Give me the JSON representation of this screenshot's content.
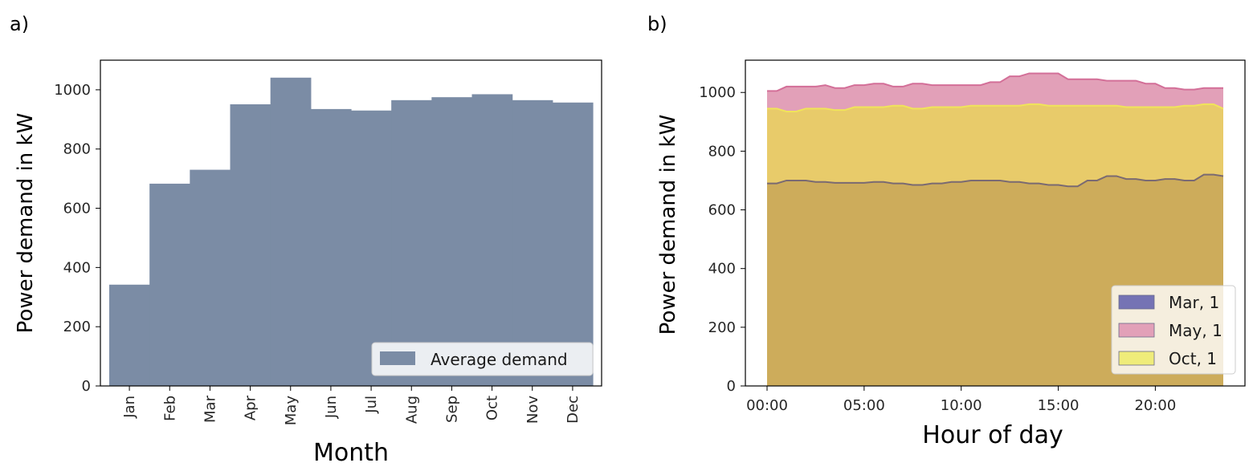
{
  "panel_labels": {
    "a": "a)",
    "b": "b)"
  },
  "chart_data": [
    {
      "type": "bar",
      "title": "",
      "xlabel": "Month",
      "ylabel": "Power demand in kW",
      "categories": [
        "Jan",
        "Feb",
        "Mar",
        "Apr",
        "May",
        "Jun",
        "Jul",
        "Aug",
        "Sep",
        "Oct",
        "Nov",
        "Dec"
      ],
      "series": [
        {
          "name": "Average demand",
          "color": "#7b8ca5",
          "values": [
            342,
            683,
            730,
            951,
            1041,
            935,
            930,
            965,
            975,
            985,
            965,
            957
          ]
        }
      ],
      "ylim": [
        0,
        1100
      ],
      "yticks": [
        0,
        200,
        400,
        600,
        800,
        1000
      ],
      "legend": {
        "position": "bottom-right",
        "labels": [
          "Average demand"
        ]
      },
      "grid": false
    },
    {
      "type": "area",
      "title": "",
      "xlabel": "Hour of day",
      "ylabel": "Power demand in kW",
      "x_hours": [
        0,
        0.5,
        1,
        1.5,
        2,
        2.5,
        3,
        3.5,
        4,
        4.5,
        5,
        5.5,
        6,
        6.5,
        7,
        7.5,
        8,
        8.5,
        9,
        9.5,
        10,
        10.5,
        11,
        11.5,
        12,
        12.5,
        13,
        13.5,
        14,
        14.5,
        15,
        15.5,
        16,
        16.5,
        17,
        17.5,
        18,
        18.5,
        19,
        19.5,
        20,
        20.5,
        21,
        21.5,
        22,
        22.5,
        23,
        23.5
      ],
      "xticks": [
        "00:00",
        "05:00",
        "10:00",
        "15:00",
        "20:00"
      ],
      "xtick_hours": [
        0,
        5,
        10,
        15,
        20
      ],
      "ylim": [
        0,
        1110
      ],
      "yticks": [
        0,
        200,
        400,
        600,
        800,
        1000
      ],
      "series": [
        {
          "name": "May, 1",
          "fill": "#e2a0b8",
          "line": "#d36f98",
          "values": [
            1005,
            1005,
            1020,
            1020,
            1020,
            1020,
            1025,
            1015,
            1015,
            1025,
            1025,
            1030,
            1030,
            1020,
            1020,
            1030,
            1030,
            1025,
            1025,
            1025,
            1025,
            1025,
            1025,
            1035,
            1035,
            1055,
            1055,
            1065,
            1065,
            1065,
            1065,
            1045,
            1045,
            1045,
            1045,
            1040,
            1040,
            1040,
            1040,
            1030,
            1030,
            1015,
            1015,
            1010,
            1010,
            1015,
            1015,
            1015
          ]
        },
        {
          "name": "Oct, 1",
          "fill": "#e8cb6a",
          "line": "#f0e45a",
          "values": [
            945,
            945,
            935,
            935,
            945,
            945,
            945,
            940,
            940,
            950,
            950,
            950,
            950,
            955,
            955,
            945,
            945,
            950,
            950,
            950,
            950,
            955,
            955,
            955,
            955,
            955,
            955,
            960,
            960,
            955,
            955,
            955,
            955,
            955,
            955,
            955,
            955,
            950,
            950,
            950,
            950,
            950,
            950,
            955,
            955,
            960,
            960,
            945
          ]
        },
        {
          "name": "Mar, 1",
          "fill": "#cdac5b",
          "line": "#7a6a72",
          "values": [
            690,
            690,
            700,
            700,
            700,
            695,
            695,
            692,
            692,
            692,
            692,
            695,
            695,
            690,
            690,
            685,
            685,
            690,
            690,
            695,
            695,
            700,
            700,
            700,
            700,
            695,
            695,
            690,
            690,
            685,
            685,
            680,
            680,
            700,
            700,
            715,
            715,
            705,
            705,
            700,
            700,
            705,
            705,
            700,
            700,
            720,
            720,
            715
          ]
        }
      ],
      "legend": {
        "position": "bottom-right",
        "labels": [
          "Mar, 1",
          "May, 1",
          "Oct, 1"
        ],
        "colors": [
          "#7573b4",
          "#e2a0b8",
          "#efec7a"
        ]
      },
      "grid": false
    }
  ]
}
